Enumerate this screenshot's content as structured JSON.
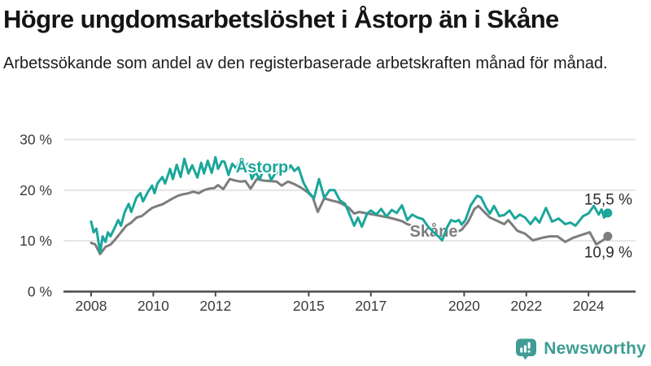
{
  "header": {
    "title": "Högre ungdomsarbetslöshet i Åstorp än i Skåne",
    "subtitle": "Arbetssökande som andel av den registerbaserade arbetskraften månad för månad."
  },
  "chart_data": {
    "type": "line",
    "unit": "%",
    "grid": "horizontal",
    "ylim": [
      0,
      30
    ],
    "y_ticks": [
      {
        "value": 0,
        "label": "0 %"
      },
      {
        "value": 10,
        "label": "10 %"
      },
      {
        "value": 20,
        "label": "20 %"
      },
      {
        "value": 30,
        "label": "30 %"
      }
    ],
    "x_ticks": [
      {
        "year": 2008,
        "label": "2008"
      },
      {
        "year": 2010,
        "label": "2010"
      },
      {
        "year": 2012,
        "label": "2012"
      },
      {
        "year": 2015,
        "label": "2015"
      },
      {
        "year": 2017,
        "label": "2017"
      },
      {
        "year": 2020,
        "label": "2020"
      },
      {
        "year": 2022,
        "label": "2022"
      },
      {
        "year": 2024,
        "label": "2024"
      }
    ],
    "series": [
      {
        "name": "Skåne",
        "color": "#7d7d7d",
        "end_label": "10,9 %",
        "points": [
          [
            2008.0,
            9.6
          ],
          [
            2008.13,
            9.3
          ],
          [
            2008.29,
            7.4
          ],
          [
            2008.46,
            8.8
          ],
          [
            2008.63,
            9.3
          ],
          [
            2008.79,
            10.4
          ],
          [
            2008.96,
            11.7
          ],
          [
            2009.13,
            13.0
          ],
          [
            2009.29,
            13.6
          ],
          [
            2009.46,
            14.6
          ],
          [
            2009.63,
            14.9
          ],
          [
            2009.79,
            15.7
          ],
          [
            2009.96,
            16.5
          ],
          [
            2010.13,
            16.9
          ],
          [
            2010.29,
            17.2
          ],
          [
            2010.46,
            17.8
          ],
          [
            2010.63,
            18.4
          ],
          [
            2010.79,
            18.9
          ],
          [
            2010.96,
            19.2
          ],
          [
            2011.13,
            19.4
          ],
          [
            2011.29,
            19.7
          ],
          [
            2011.46,
            19.4
          ],
          [
            2011.63,
            20.0
          ],
          [
            2011.79,
            20.3
          ],
          [
            2011.96,
            20.4
          ],
          [
            2012.08,
            21.0
          ],
          [
            2012.25,
            20.2
          ],
          [
            2012.46,
            22.2
          ],
          [
            2012.63,
            21.9
          ],
          [
            2012.79,
            21.7
          ],
          [
            2012.96,
            21.8
          ],
          [
            2013.13,
            20.3
          ],
          [
            2013.33,
            22.2
          ],
          [
            2013.54,
            21.9
          ],
          [
            2013.75,
            21.8
          ],
          [
            2013.96,
            21.7
          ],
          [
            2014.13,
            20.9
          ],
          [
            2014.33,
            21.7
          ],
          [
            2014.54,
            21.2
          ],
          [
            2014.75,
            20.5
          ],
          [
            2014.96,
            19.6
          ],
          [
            2015.13,
            18.6
          ],
          [
            2015.29,
            15.7
          ],
          [
            2015.5,
            18.4
          ],
          [
            2015.71,
            18.0
          ],
          [
            2015.92,
            17.7
          ],
          [
            2016.08,
            17.3
          ],
          [
            2016.29,
            16.5
          ],
          [
            2016.46,
            15.4
          ],
          [
            2016.63,
            15.7
          ],
          [
            2016.88,
            15.4
          ],
          [
            2017.08,
            15.2
          ],
          [
            2017.33,
            14.9
          ],
          [
            2017.58,
            14.6
          ],
          [
            2017.83,
            14.2
          ],
          [
            2018.0,
            13.9
          ],
          [
            2018.17,
            13.3
          ],
          [
            2018.42,
            12.8
          ],
          [
            2018.67,
            12.4
          ],
          [
            2018.92,
            12.0
          ],
          [
            2019.17,
            11.5
          ],
          [
            2019.42,
            11.2
          ],
          [
            2019.67,
            11.5
          ],
          [
            2019.92,
            12.2
          ],
          [
            2020.13,
            13.8
          ],
          [
            2020.33,
            16.3
          ],
          [
            2020.46,
            16.9
          ],
          [
            2020.63,
            15.8
          ],
          [
            2020.83,
            14.6
          ],
          [
            2021.08,
            13.9
          ],
          [
            2021.29,
            13.3
          ],
          [
            2021.42,
            14.1
          ],
          [
            2021.71,
            12.0
          ],
          [
            2021.96,
            11.4
          ],
          [
            2022.21,
            10.1
          ],
          [
            2022.5,
            10.6
          ],
          [
            2022.75,
            10.9
          ],
          [
            2023.0,
            10.9
          ],
          [
            2023.25,
            9.8
          ],
          [
            2023.5,
            10.6
          ],
          [
            2023.79,
            11.2
          ],
          [
            2024.04,
            11.7
          ],
          [
            2024.25,
            9.3
          ],
          [
            2024.46,
            10.1
          ],
          [
            2024.62,
            10.9
          ]
        ]
      },
      {
        "name": "Åstorp",
        "color": "#1ba69b",
        "end_label": "15,5 %",
        "points": [
          [
            2008.0,
            13.8
          ],
          [
            2008.08,
            11.7
          ],
          [
            2008.17,
            12.4
          ],
          [
            2008.29,
            7.7
          ],
          [
            2008.37,
            10.9
          ],
          [
            2008.46,
            9.8
          ],
          [
            2008.54,
            11.7
          ],
          [
            2008.62,
            10.9
          ],
          [
            2008.75,
            12.5
          ],
          [
            2008.87,
            14.1
          ],
          [
            2008.96,
            13.0
          ],
          [
            2009.08,
            15.7
          ],
          [
            2009.21,
            17.3
          ],
          [
            2009.29,
            15.7
          ],
          [
            2009.46,
            18.6
          ],
          [
            2009.58,
            19.4
          ],
          [
            2009.67,
            17.8
          ],
          [
            2009.83,
            19.7
          ],
          [
            2009.96,
            20.9
          ],
          [
            2010.04,
            19.4
          ],
          [
            2010.13,
            21.3
          ],
          [
            2010.29,
            22.6
          ],
          [
            2010.38,
            21.3
          ],
          [
            2010.54,
            24.2
          ],
          [
            2010.63,
            22.2
          ],
          [
            2010.75,
            25.0
          ],
          [
            2010.88,
            22.6
          ],
          [
            2011.0,
            26.2
          ],
          [
            2011.13,
            23.3
          ],
          [
            2011.25,
            24.9
          ],
          [
            2011.42,
            22.5
          ],
          [
            2011.54,
            25.4
          ],
          [
            2011.63,
            23.3
          ],
          [
            2011.75,
            25.8
          ],
          [
            2011.88,
            23.4
          ],
          [
            2012.0,
            26.5
          ],
          [
            2012.08,
            24.2
          ],
          [
            2012.21,
            25.7
          ],
          [
            2012.29,
            25.6
          ],
          [
            2012.42,
            23.0
          ],
          [
            2012.54,
            25.2
          ],
          [
            2012.67,
            24.3
          ],
          [
            2012.79,
            25.9
          ],
          [
            2012.92,
            24.6
          ],
          [
            2013.04,
            25.2
          ],
          [
            2013.17,
            22.2
          ],
          [
            2013.29,
            23.6
          ],
          [
            2013.42,
            22.1
          ],
          [
            2013.54,
            24.0
          ],
          [
            2013.67,
            24.2
          ],
          [
            2013.79,
            22.0
          ],
          [
            2013.92,
            23.3
          ],
          [
            2014.04,
            23.5
          ],
          [
            2014.17,
            24.6
          ],
          [
            2014.29,
            23.6
          ],
          [
            2014.42,
            24.9
          ],
          [
            2014.54,
            23.8
          ],
          [
            2014.67,
            24.5
          ],
          [
            2014.83,
            21.5
          ],
          [
            2015.0,
            19.6
          ],
          [
            2015.17,
            18.4
          ],
          [
            2015.33,
            22.2
          ],
          [
            2015.5,
            18.5
          ],
          [
            2015.67,
            20.0
          ],
          [
            2015.83,
            20.0
          ],
          [
            2016.0,
            18.0
          ],
          [
            2016.17,
            17.3
          ],
          [
            2016.33,
            15.0
          ],
          [
            2016.46,
            13.0
          ],
          [
            2016.58,
            14.6
          ],
          [
            2016.71,
            12.8
          ],
          [
            2016.88,
            15.4
          ],
          [
            2017.0,
            16.0
          ],
          [
            2017.17,
            15.2
          ],
          [
            2017.33,
            16.3
          ],
          [
            2017.5,
            14.8
          ],
          [
            2017.67,
            16.1
          ],
          [
            2017.83,
            15.5
          ],
          [
            2018.0,
            17.0
          ],
          [
            2018.17,
            14.1
          ],
          [
            2018.33,
            15.2
          ],
          [
            2018.5,
            14.6
          ],
          [
            2018.67,
            14.3
          ],
          [
            2018.83,
            12.9
          ],
          [
            2019.0,
            11.8
          ],
          [
            2019.17,
            10.9
          ],
          [
            2019.29,
            10.1
          ],
          [
            2019.46,
            12.8
          ],
          [
            2019.58,
            14.1
          ],
          [
            2019.71,
            13.8
          ],
          [
            2019.83,
            14.1
          ],
          [
            2019.92,
            13.2
          ],
          [
            2020.04,
            14.1
          ],
          [
            2020.21,
            17.0
          ],
          [
            2020.42,
            18.9
          ],
          [
            2020.54,
            18.6
          ],
          [
            2020.71,
            16.5
          ],
          [
            2020.83,
            15.4
          ],
          [
            2020.96,
            16.9
          ],
          [
            2021.13,
            14.9
          ],
          [
            2021.29,
            15.1
          ],
          [
            2021.46,
            16.0
          ],
          [
            2021.63,
            14.4
          ],
          [
            2021.79,
            15.2
          ],
          [
            2021.96,
            14.6
          ],
          [
            2022.13,
            13.3
          ],
          [
            2022.29,
            14.6
          ],
          [
            2022.42,
            13.6
          ],
          [
            2022.63,
            16.5
          ],
          [
            2022.83,
            13.8
          ],
          [
            2023.04,
            14.4
          ],
          [
            2023.25,
            13.3
          ],
          [
            2023.42,
            13.6
          ],
          [
            2023.58,
            13.0
          ],
          [
            2023.83,
            14.9
          ],
          [
            2024.0,
            15.4
          ],
          [
            2024.17,
            16.9
          ],
          [
            2024.33,
            15.2
          ],
          [
            2024.42,
            16.2
          ],
          [
            2024.5,
            14.6
          ],
          [
            2024.62,
            15.5
          ]
        ]
      }
    ]
  },
  "logo": {
    "text": "Newsworthy",
    "color": "#3f9d95"
  },
  "colors": {
    "astorp": "#1ba69b",
    "skane": "#7d7d7d",
    "gridline": "#e4e4e4",
    "axis": "#4a4a4a",
    "tick_text": "#3a3a3a",
    "value_label_text": "#2b2b2b"
  }
}
